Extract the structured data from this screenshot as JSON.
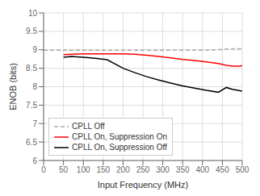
{
  "chart_data": {
    "type": "line",
    "xlabel": "Input Frequency (MHz)",
    "ylabel": "ENOB (bits)",
    "xlim": [
      0,
      500
    ],
    "ylim": [
      6,
      10
    ],
    "xticks": [
      0,
      50,
      100,
      150,
      200,
      250,
      300,
      350,
      400,
      450,
      500
    ],
    "yticks": [
      6,
      6.5,
      7,
      7.5,
      8,
      8.5,
      9,
      9.5,
      10
    ],
    "grid": true,
    "legend": "lower left",
    "series": [
      {
        "name": "CPLL Off",
        "color": "#aaaaaa",
        "line_style": "dashed",
        "x": [
          0,
          10,
          50,
          100,
          150,
          200,
          250,
          300,
          350,
          400,
          430,
          460,
          490,
          500
        ],
        "values": [
          8.99,
          8.99,
          8.99,
          8.99,
          8.99,
          8.99,
          8.99,
          8.99,
          8.99,
          8.99,
          9.0,
          9.02,
          9.03,
          9.03
        ]
      },
      {
        "name": "CPLL On, Suppression On",
        "color": "#ff0000",
        "line_style": "solid",
        "x": [
          50,
          70,
          100,
          130,
          160,
          200,
          230,
          260,
          290,
          320,
          350,
          380,
          410,
          440,
          460,
          475,
          490,
          500
        ],
        "values": [
          8.87,
          8.88,
          8.89,
          8.89,
          8.89,
          8.89,
          8.88,
          8.85,
          8.82,
          8.78,
          8.74,
          8.71,
          8.67,
          8.63,
          8.58,
          8.56,
          8.56,
          8.57
        ]
      },
      {
        "name": "CPLL On, Suppression Off",
        "color": "#000000",
        "line_style": "solid",
        "x": [
          50,
          70,
          100,
          130,
          160,
          200,
          230,
          260,
          290,
          320,
          350,
          380,
          410,
          440,
          460,
          475,
          490,
          500
        ],
        "values": [
          8.8,
          8.82,
          8.8,
          8.77,
          8.73,
          8.5,
          8.38,
          8.27,
          8.18,
          8.1,
          8.02,
          7.96,
          7.9,
          7.85,
          7.98,
          7.93,
          7.9,
          7.88
        ]
      }
    ]
  }
}
